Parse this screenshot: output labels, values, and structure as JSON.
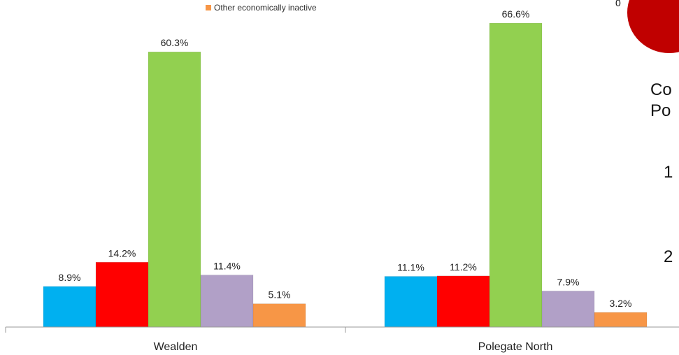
{
  "chart_data": {
    "type": "bar",
    "categories": [
      "Wealden",
      "Polegate North"
    ],
    "series": [
      {
        "color": "#00b0f0",
        "values": [
          8.9,
          11.1
        ],
        "labels": [
          "8.9%",
          "11.1%"
        ]
      },
      {
        "color": "#ff0000",
        "values": [
          14.2,
          11.2
        ],
        "labels": [
          "14.2%",
          "11.2%"
        ]
      },
      {
        "color": "#92d050",
        "values": [
          60.3,
          66.6
        ],
        "labels": [
          "60.3%",
          "66.6%"
        ]
      },
      {
        "color": "#b1a0c7",
        "values": [
          11.4,
          7.9
        ],
        "labels": [
          "11.4%",
          "7.9%"
        ]
      },
      {
        "name": "Other economically inactive",
        "color": "#f79646",
        "values": [
          5.1,
          3.2
        ],
        "labels": [
          "5.1%",
          "3.2%"
        ]
      }
    ],
    "ylim": [
      0,
      70
    ],
    "grid": false,
    "legend_position": "top"
  },
  "legend_visible": {
    "label": "Other economically inactive",
    "color": "#f79646"
  },
  "slide_fragments": {
    "zero": "0",
    "line1": "Co",
    "line2": "Po",
    "num1": "1",
    "num2": "2",
    "blob_color": "#c00000"
  }
}
